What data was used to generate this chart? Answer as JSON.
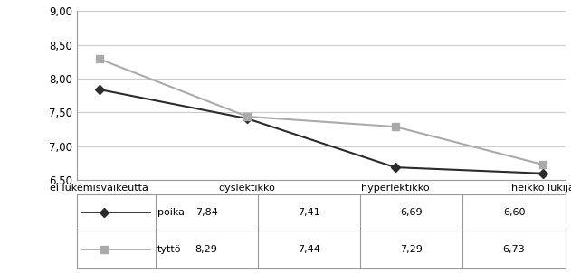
{
  "categories": [
    "ei lukemisvaikeutta",
    "dyslektikko",
    "hyperlektikko",
    "heikko lukija"
  ],
  "poika_values": [
    7.84,
    7.41,
    6.69,
    6.6
  ],
  "tytto_values": [
    8.29,
    7.44,
    7.29,
    6.73
  ],
  "poika_label": "poika",
  "tytto_label": "tyttö",
  "poika_color": "#2b2b2b",
  "tytto_color": "#aaaaaa",
  "ylim": [
    6.5,
    9.0
  ],
  "yticks": [
    6.5,
    7.0,
    7.5,
    8.0,
    8.5,
    9.0
  ],
  "background_color": "#ffffff",
  "table_rows": [
    [
      "7,84",
      "7,41",
      "6,69",
      "6,60"
    ],
    [
      "8,29",
      "7,44",
      "7,29",
      "6,73"
    ]
  ],
  "table_row_labels": [
    "poika",
    "tyttö"
  ],
  "border_color": "#999999",
  "grid_color": "#cccccc"
}
